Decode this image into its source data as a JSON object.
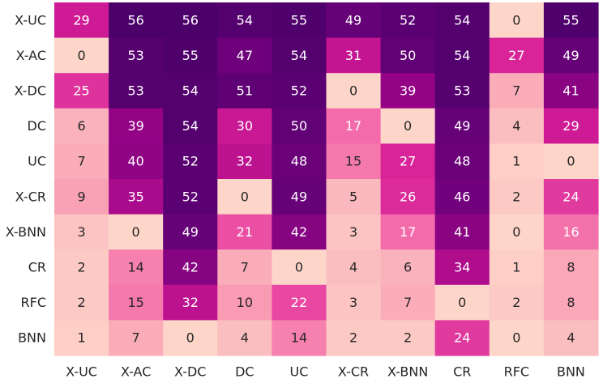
{
  "chart_data": {
    "type": "heatmap",
    "title": "",
    "xlabel": "",
    "ylabel": "",
    "x_categories": [
      "X-UC",
      "X-AC",
      "X-DC",
      "DC",
      "UC",
      "X-CR",
      "X-BNN",
      "CR",
      "RFC",
      "BNN"
    ],
    "y_categories": [
      "X-UC",
      "X-AC",
      "X-DC",
      "DC",
      "UC",
      "X-CR",
      "X-BNN",
      "CR",
      "RFC",
      "BNN"
    ],
    "values": [
      [
        29,
        56,
        56,
        54,
        55,
        49,
        52,
        54,
        0,
        55
      ],
      [
        0,
        53,
        55,
        47,
        54,
        31,
        50,
        54,
        27,
        49
      ],
      [
        25,
        53,
        54,
        51,
        52,
        0,
        39,
        53,
        7,
        41
      ],
      [
        6,
        39,
        54,
        30,
        50,
        17,
        0,
        49,
        4,
        29
      ],
      [
        7,
        40,
        52,
        32,
        48,
        15,
        27,
        48,
        1,
        0
      ],
      [
        9,
        35,
        52,
        0,
        49,
        5,
        26,
        46,
        2,
        24
      ],
      [
        3,
        0,
        49,
        21,
        42,
        3,
        17,
        41,
        0,
        16
      ],
      [
        2,
        14,
        42,
        7,
        0,
        4,
        6,
        34,
        1,
        8
      ],
      [
        2,
        15,
        32,
        10,
        22,
        3,
        7,
        0,
        2,
        8
      ],
      [
        1,
        7,
        0,
        4,
        14,
        2,
        2,
        24,
        0,
        4
      ]
    ],
    "value_range": [
      0,
      56
    ],
    "colormap": [
      "#fdd5c9",
      "#f99fb4",
      "#f260a8",
      "#d51d96",
      "#9c0488",
      "#6f017c",
      "#4c006a"
    ],
    "text_color_light": "#ffffff",
    "text_color_dark": "#262626",
    "colorbar": false,
    "grid": false
  }
}
